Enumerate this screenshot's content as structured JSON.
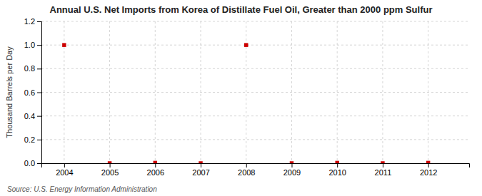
{
  "chart_data": {
    "type": "scatter",
    "title": "Annual U.S. Net Imports from Korea of Distillate Fuel Oil, Greater than 2000 ppm Sulfur",
    "y_label": "Thousand Barrels per Day",
    "annotations": [
      "Source: U.S. Energy Information Administration"
    ],
    "x": [
      2004,
      2005,
      2006,
      2007,
      2008,
      2009,
      2010,
      2011,
      2012
    ],
    "values": [
      1.0,
      0.0,
      0.0037,
      0.0,
      1.0,
      0.0,
      0.0037,
      0.0,
      0.0037
    ],
    "color": "#cc0000",
    "marker": "square",
    "xlim": [
      2003.5,
      2012.9
    ],
    "ylim": [
      0.0,
      1.2
    ],
    "xticks": [
      2004,
      2005,
      2006,
      2007,
      2008,
      2009,
      2010,
      2011,
      2012
    ],
    "yticks": [
      {
        "value": 0,
        "label": "0.0"
      },
      0.2,
      0.4,
      0.6,
      0.8,
      {
        "value": 1,
        "label": "1.0"
      },
      1.2
    ],
    "grid": true
  }
}
